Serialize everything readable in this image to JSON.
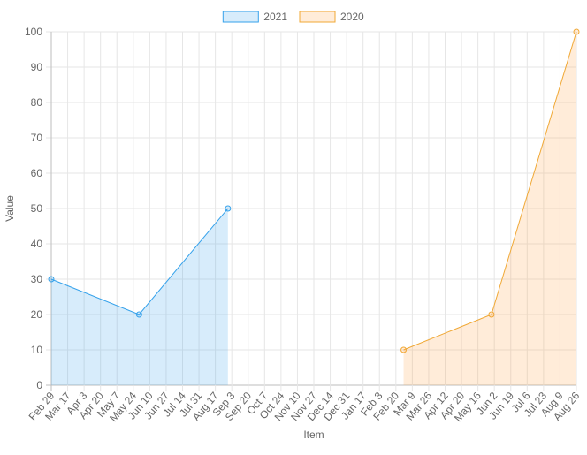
{
  "chart_data": {
    "type": "line",
    "xlabel": "Item",
    "ylabel": "Value",
    "ylim": [
      0,
      100
    ],
    "yticks": [
      0,
      10,
      20,
      30,
      40,
      50,
      60,
      70,
      80,
      90,
      100
    ],
    "grid": true,
    "legend_position": "top",
    "categories": [
      "Feb 29",
      "Mar 17",
      "Apr 3",
      "Apr 20",
      "May 7",
      "May 24",
      "Jun 10",
      "Jun 27",
      "Jul 14",
      "Jul 31",
      "Aug 17",
      "Sep 3",
      "Sep 20",
      "Oct 7",
      "Oct 24",
      "Nov 10",
      "Nov 27",
      "Dec 14",
      "Dec 31",
      "Jan 17",
      "Feb 3",
      "Feb 20",
      "Mar 9",
      "Mar 26",
      "Apr 12",
      "Apr 29",
      "May 16",
      "Jun 2",
      "Jun 19",
      "Jul 6",
      "Jul 23",
      "Aug 9",
      "Aug 26"
    ],
    "x_range": [
      "2020-02-29",
      "2021-08-26"
    ],
    "series": [
      {
        "name": "2021",
        "color": "#36a2eb",
        "fill": "rgba(54,162,235,0.2)",
        "points": [
          {
            "x": "2020-02-29",
            "y": 30
          },
          {
            "x": "2020-05-30",
            "y": 20
          },
          {
            "x": "2020-08-30",
            "y": 50
          }
        ]
      },
      {
        "name": "2020",
        "color": "#f0a835",
        "fill": "rgba(255,159,64,0.2)",
        "points": [
          {
            "x": "2021-02-28",
            "y": 10
          },
          {
            "x": "2021-05-30",
            "y": 20
          },
          {
            "x": "2021-08-26",
            "y": 100
          }
        ]
      }
    ]
  }
}
